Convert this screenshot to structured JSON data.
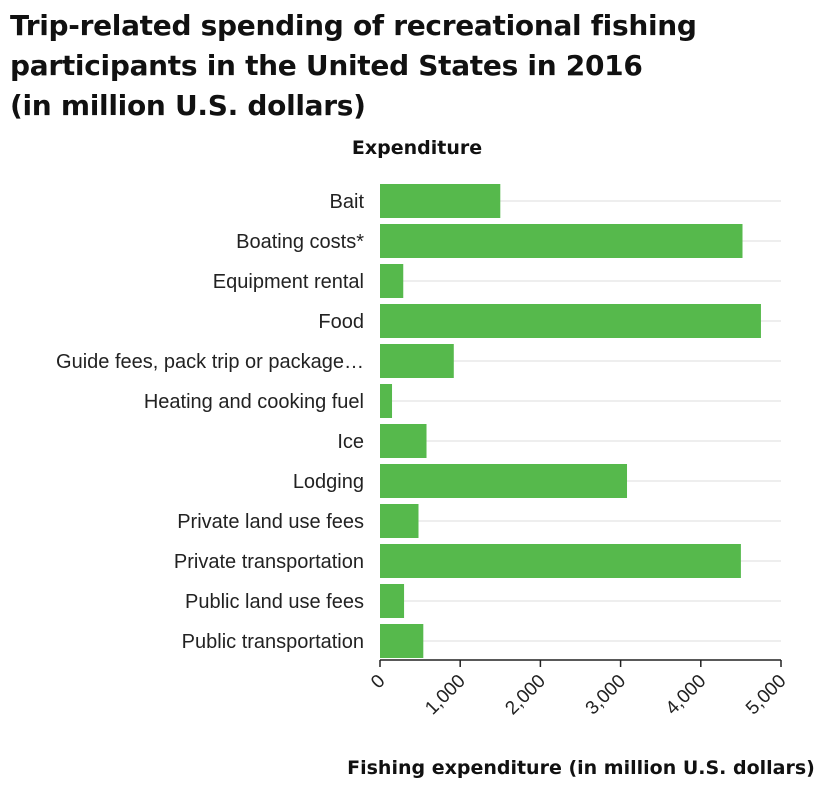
{
  "chart_data": {
    "type": "bar",
    "orientation": "horizontal",
    "title_lines": [
      "Trip-related spending of recreational fishing",
      "participants in the United States in 2016",
      "(in million U.S. dollars)"
    ],
    "ylabel": "Expenditure",
    "xlabel": "Fishing expenditure (in million U.S. dollars)",
    "categories": [
      "Bait",
      "Boating costs*",
      "Equipment rental",
      "Food",
      "Guide fees, pack trip or package…",
      "Heating and cooking fuel",
      "Ice",
      "Lodging",
      "Private land use fees",
      "Private transportation",
      "Public land use fees",
      "Public transportation"
    ],
    "values": [
      1500,
      4520,
      290,
      4750,
      920,
      150,
      580,
      3080,
      480,
      4500,
      300,
      540
    ],
    "xlim": [
      0,
      5000
    ],
    "xticks": [
      0,
      1000,
      2000,
      3000,
      4000,
      5000
    ],
    "xtick_labels": [
      "0",
      "1,000",
      "2,000",
      "3,000",
      "4,000",
      "5,000"
    ],
    "grid": true,
    "bar_color": "#56b94c",
    "legend": "none"
  }
}
